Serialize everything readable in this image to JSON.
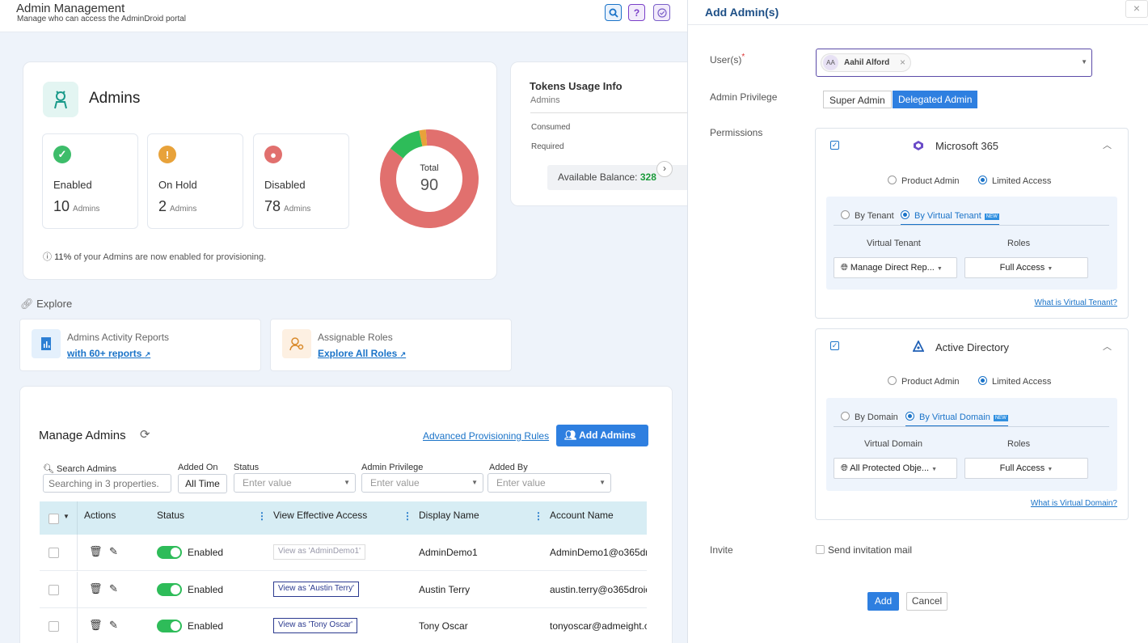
{
  "header": {
    "title": "Admin Management",
    "subtitle": "Manage who can access the AdminDroid portal"
  },
  "admins_card": {
    "title": "Admins",
    "stats": [
      {
        "label": "Enabled",
        "value": "10",
        "unit": "Admins"
      },
      {
        "label": "On Hold",
        "value": "2",
        "unit": "Admins"
      },
      {
        "label": "Disabled",
        "value": "78",
        "unit": "Admins"
      }
    ],
    "donut": {
      "label": "Total",
      "value": "90",
      "enabled": 10,
      "on_hold": 2,
      "disabled": 78
    },
    "note_pct": "11%",
    "note_text": "of your Admins are now enabled for provisioning."
  },
  "tokens": {
    "title": "Tokens Usage Info",
    "subtitle": "Admins",
    "consumed": "Consumed",
    "required": "Required",
    "balance_label": "Available Balance:",
    "balance_value": "328"
  },
  "explore": {
    "title": "Explore",
    "items": [
      {
        "title": "Admins Activity Reports",
        "link": "with 60+ reports"
      },
      {
        "title": "Assignable Roles",
        "link": "Explore All Roles"
      }
    ]
  },
  "manage": {
    "title": "Manage Admins",
    "rules_link": "Advanced Provisioning Rules",
    "add_button": "Add Admins",
    "filters": {
      "search_label": "Search Admins",
      "search_placeholder": "Searching in 3 properties.",
      "added_on_label": "Added On",
      "added_on_value": "All Time",
      "status_label": "Status",
      "status_placeholder": "Enter value",
      "privilege_label": "Admin Privilege",
      "privilege_placeholder": "Enter value",
      "added_by_label": "Added By",
      "added_by_placeholder": "Enter value"
    },
    "columns": [
      "Actions",
      "Status",
      "View Effective Access",
      "Display Name",
      "Account Name"
    ],
    "rows": [
      {
        "status": "Enabled",
        "view": "View as 'AdminDemo1'",
        "name": "AdminDemo1",
        "account": "AdminDemo1@o365dr"
      },
      {
        "status": "Enabled",
        "view": "View as 'Austin Terry'",
        "name": "Austin Terry",
        "account": "austin.terry@o365droic"
      },
      {
        "status": "Enabled",
        "view": "View as 'Tony Oscar'",
        "name": "Tony Oscar",
        "account": "tonyoscar@admeight.c"
      }
    ]
  },
  "panel": {
    "title": "Add Admin(s)",
    "users_label": "User(s)",
    "required_mark": "*",
    "user_chip_initials": "AA",
    "user_chip_name": "Aahil Alford",
    "privilege_label": "Admin Privilege",
    "privilege_options": [
      "Super Admin",
      "Delegated Admin"
    ],
    "permissions_label": "Permissions",
    "sections": [
      {
        "title": "Microsoft 365",
        "opt1": "Product Admin",
        "opt2": "Limited Access",
        "tab1": "By Tenant",
        "tab2": "By Virtual Tenant",
        "new": "NEW",
        "col1": "Virtual Tenant",
        "col2": "Roles",
        "value1": "Manage Direct Rep...",
        "value2": "Full Access",
        "help": "What is Virtual Tenant?"
      },
      {
        "title": "Active Directory",
        "opt1": "Product Admin",
        "opt2": "Limited Access",
        "tab1": "By Domain",
        "tab2": "By Virtual Domain",
        "new": "NEW",
        "col1": "Virtual Domain",
        "col2": "Roles",
        "value1": "All Protected Obje...",
        "value2": "Full Access",
        "help": "What is Virtual Domain?"
      }
    ],
    "invite_label": "Invite",
    "invite_option": "Send invitation mail",
    "add_button": "Add",
    "cancel_button": "Cancel"
  },
  "colors": {
    "primary": "#1a73c8",
    "enabled": "#2ebc59",
    "on_hold": "#e8a23a",
    "disabled": "#e1706e"
  }
}
